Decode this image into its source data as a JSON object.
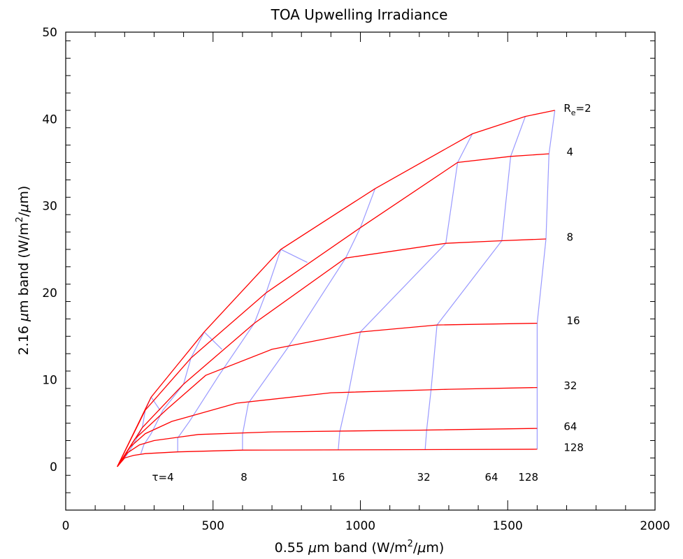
{
  "chart_data": {
    "type": "line",
    "title": "TOA Upwelling Irradiance",
    "xlabel": {
      "pre": "0.55 ",
      "mu": "μ",
      "mid": "m band (W/m",
      "sup": "2",
      "post": "/",
      "mu2": "μ",
      "end": "m)"
    },
    "ylabel": {
      "pre": "2.16 ",
      "mu": "μ",
      "mid": "m band (W/m",
      "sup": "2",
      "post": "/",
      "mu2": "μ",
      "end": "m)"
    },
    "xlim": [
      0,
      2000
    ],
    "ylim": [
      -5,
      50
    ],
    "xticks": [
      0,
      500,
      1000,
      1500,
      2000
    ],
    "xtick_labels": [
      "0",
      "500",
      "1000",
      "1500",
      "2000"
    ],
    "yticks": [
      0,
      10,
      20,
      30,
      40,
      50
    ],
    "ytick_labels": [
      "0",
      "10",
      "20",
      "30",
      "40",
      "50"
    ],
    "grid": false,
    "origin": [
      175,
      0
    ],
    "tau_values": [
      2,
      4,
      8,
      16,
      32,
      64,
      128
    ],
    "re_series": [
      {
        "name": "2",
        "color": "#ff0000",
        "x": [
          290,
          470,
          730,
          1050,
          1380,
          1560,
          1660
        ],
        "y": [
          8,
          15.5,
          25,
          32,
          38.3,
          40.3,
          41
        ]
      },
      {
        "name": "4",
        "color": "#ff0000",
        "x": [
          270,
          425,
          680,
          1000,
          1330,
          1510,
          1640
        ],
        "y": [
          6.5,
          12.5,
          20,
          27.5,
          35,
          35.7,
          36
        ]
      },
      {
        "name": "8",
        "color": "#ff0000",
        "x": [
          260,
          400,
          640,
          950,
          1290,
          1480,
          1630
        ],
        "y": [
          4.5,
          9.5,
          16.5,
          24,
          25.7,
          26,
          26.2
        ]
      },
      {
        "name": "16",
        "color": "#ff0000",
        "x": [
          235,
          340,
          475,
          700,
          1000,
          1260,
          1600
        ],
        "y": [
          3.2,
          6.5,
          10.5,
          13.5,
          15.5,
          16.3,
          16.5
        ]
      },
      {
        "name": "32",
        "color": "#ff0000",
        "x": [
          220,
          270,
          360,
          580,
          900,
          1300,
          1600
        ],
        "y": [
          2.3,
          3.8,
          5.2,
          7.3,
          8.5,
          8.9,
          9.1
        ]
      },
      {
        "name": "64",
        "color": "#ff0000",
        "x": [
          210,
          250,
          300,
          450,
          700,
          1200,
          1600
        ],
        "y": [
          1.6,
          2.5,
          3,
          3.7,
          4,
          4.2,
          4.4
        ]
      },
      {
        "name": "128",
        "color": "#ff0000",
        "x": [
          200,
          230,
          270,
          380,
          600,
          1100,
          1600
        ],
        "y": [
          1,
          1.3,
          1.5,
          1.7,
          1.9,
          1.95,
          2
        ]
      }
    ],
    "tau_series": [
      {
        "name": "4",
        "color": "#9999ff",
        "x": [
          290,
          270,
          260,
          240,
          225,
          212,
          200
        ],
        "y": [
          8,
          6.5,
          4.5,
          3.2,
          2.3,
          1.6,
          1
        ]
      },
      {
        "name": "8",
        "color": "#9999ff",
        "x": [
          470,
          425,
          400,
          330,
          290,
          265,
          255
        ],
        "y": [
          15.5,
          12.5,
          9.5,
          6.5,
          3.8,
          2.5,
          1.5
        ]
      },
      {
        "name": "16",
        "color": "#9999ff",
        "x": [
          730,
          680,
          640,
          520,
          420,
          380,
          380
        ],
        "y": [
          25,
          20,
          16.5,
          10.5,
          5.2,
          3.3,
          1.7
        ]
      },
      {
        "name": "32",
        "color": "#9999ff",
        "x": [
          1050,
          1000,
          950,
          750,
          620,
          600,
          600
        ],
        "y": [
          32,
          27.5,
          24,
          13.5,
          7.3,
          3.7,
          1.9
        ]
      },
      {
        "name": "64",
        "color": "#9999ff",
        "x": [
          1380,
          1330,
          1290,
          1000,
          960,
          930,
          925
        ],
        "y": [
          38.3,
          35,
          25.7,
          15.5,
          8.5,
          4,
          1.95
        ]
      },
      {
        "name": "128",
        "color": "#9999ff",
        "x": [
          1560,
          1510,
          1480,
          1260,
          1240,
          1225,
          1220
        ],
        "y": [
          40.3,
          35.7,
          26,
          16.3,
          8.9,
          4.2,
          2
        ]
      }
    ],
    "extra_blue_segments": [
      {
        "x": [
          1660,
          1640,
          1630,
          1600,
          1600,
          1600,
          1600
        ],
        "y": [
          41,
          36,
          26.2,
          16.5,
          9.1,
          4.4,
          2
        ]
      },
      {
        "x": [
          290,
          320
        ],
        "y": [
          8,
          6.5
        ]
      },
      {
        "x": [
          470,
          530
        ],
        "y": [
          15.5,
          13.5
        ]
      },
      {
        "x": [
          730,
          820
        ],
        "y": [
          25,
          23.5
        ]
      }
    ],
    "re_labels": [
      {
        "text": "4",
        "x": 1700,
        "y": 36.2
      },
      {
        "text": "8",
        "x": 1700,
        "y": 26.4
      },
      {
        "text": "16",
        "x": 1700,
        "y": 16.8
      },
      {
        "text": "32",
        "x": 1690,
        "y": 9.3
      },
      {
        "text": "64",
        "x": 1690,
        "y": 4.6
      },
      {
        "text": "128",
        "x": 1690,
        "y": 2.2
      }
    ],
    "re_top_label": {
      "main": "R",
      "sub": "e",
      "rest": "=2",
      "x": 1690,
      "y": 41
    },
    "tau_labels": [
      {
        "text": "τ=4",
        "x": 330,
        "y": -0.5
      },
      {
        "text": "8",
        "x": 605,
        "y": -0.5
      },
      {
        "text": "16",
        "x": 925,
        "y": -0.5
      },
      {
        "text": "32",
        "x": 1215,
        "y": -0.5
      },
      {
        "text": "64",
        "x": 1445,
        "y": -0.5
      },
      {
        "text": "128",
        "x": 1570,
        "y": -0.5
      }
    ]
  }
}
